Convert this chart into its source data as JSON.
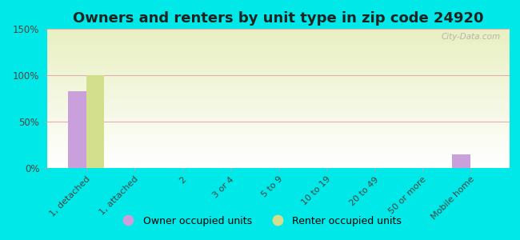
{
  "title": "Owners and renters by unit type in zip code 24920",
  "categories": [
    "1, detached",
    "1, attached",
    "2",
    "3 or 4",
    "5 to 9",
    "10 to 19",
    "20 to 49",
    "50 or more",
    "Mobile home"
  ],
  "owner_values": [
    83,
    0,
    0,
    0,
    0,
    0,
    0,
    0,
    15
  ],
  "renter_values": [
    100,
    0,
    0,
    0,
    0,
    0,
    0,
    0,
    0
  ],
  "owner_color": "#c9a0dc",
  "renter_color": "#d4df8e",
  "ylim": [
    0,
    150
  ],
  "yticks": [
    0,
    50,
    100,
    150
  ],
  "ytick_labels": [
    "0%",
    "50%",
    "100%",
    "150%"
  ],
  "bar_width": 0.38,
  "background_color": "#00e8e8",
  "legend_owner": "Owner occupied units",
  "legend_renter": "Renter occupied units",
  "title_fontsize": 13,
  "watermark": "City-Data.com"
}
